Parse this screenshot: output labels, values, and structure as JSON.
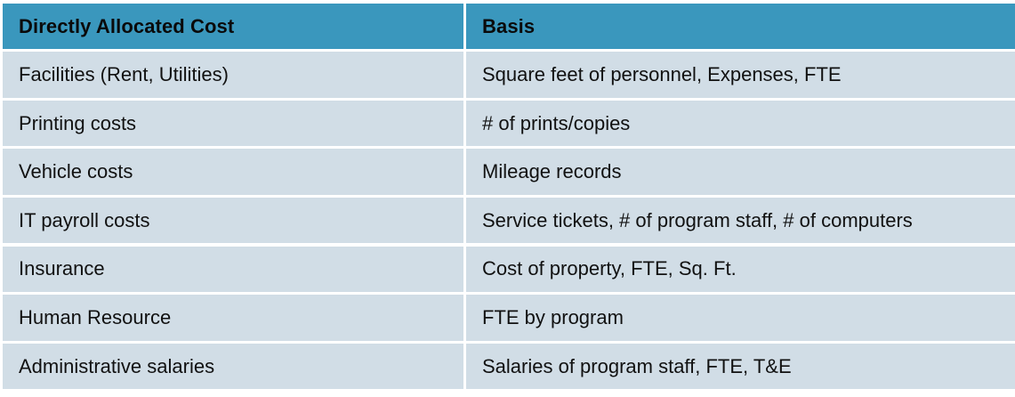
{
  "table": {
    "headers": [
      "Directly Allocated Cost",
      "Basis"
    ],
    "rows": [
      [
        "Facilities (Rent, Utilities)",
        "Square feet of personnel, Expenses, FTE"
      ],
      [
        "Printing costs",
        "# of prints/copies"
      ],
      [
        "Vehicle costs",
        "Mileage records"
      ],
      [
        "IT payroll costs",
        "Service tickets, # of program staff, # of computers"
      ],
      [
        "Insurance",
        "Cost of property, FTE, Sq. Ft."
      ],
      [
        "Human Resource",
        "FTE by program"
      ],
      [
        "Administrative salaries",
        "Salaries of program staff, FTE, T&E"
      ]
    ]
  },
  "colors": {
    "header_bg": "#3a97bd",
    "row_bg": "#d1dde6",
    "divider": "#ffffff"
  }
}
